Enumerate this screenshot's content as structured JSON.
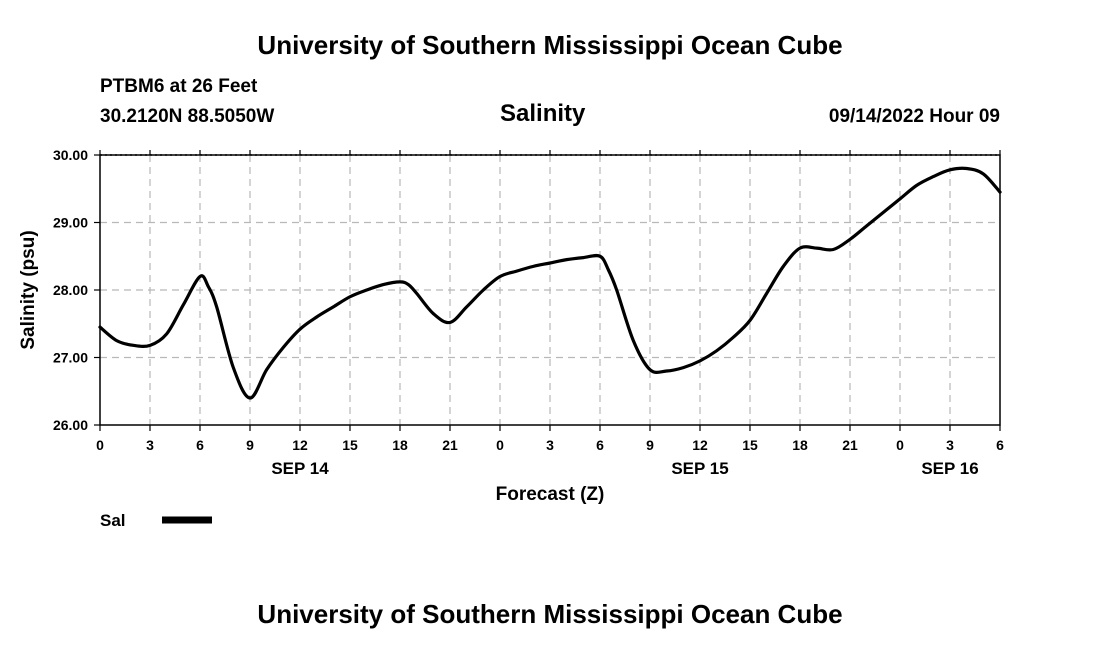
{
  "header": {
    "title": "University of Southern Mississippi Ocean Cube",
    "station": "PTBM6 at 26 Feet",
    "coordinates": "30.2120N  88.5050W",
    "plot_title": "Salinity",
    "forecast_time": "09/14/2022 Hour 09"
  },
  "footer": {
    "title": "University of Southern Mississippi Ocean Cube"
  },
  "chart_data": {
    "type": "line",
    "title": "Salinity",
    "xlabel": "Forecast (Z)",
    "ylabel": "Salinity (psu)",
    "ylim": [
      26.0,
      30.0
    ],
    "yticks": [
      "26.00",
      "27.00",
      "28.00",
      "29.00",
      "30.00"
    ],
    "xlim_hours": [
      0,
      54
    ],
    "xticks": [
      {
        "hour": 0,
        "label": "0"
      },
      {
        "hour": 3,
        "label": "3"
      },
      {
        "hour": 6,
        "label": "6"
      },
      {
        "hour": 9,
        "label": "9"
      },
      {
        "hour": 12,
        "label": "12"
      },
      {
        "hour": 15,
        "label": "15"
      },
      {
        "hour": 18,
        "label": "18"
      },
      {
        "hour": 21,
        "label": "21"
      },
      {
        "hour": 24,
        "label": "0"
      },
      {
        "hour": 27,
        "label": "3"
      },
      {
        "hour": 30,
        "label": "6"
      },
      {
        "hour": 33,
        "label": "9"
      },
      {
        "hour": 36,
        "label": "12"
      },
      {
        "hour": 39,
        "label": "15"
      },
      {
        "hour": 42,
        "label": "18"
      },
      {
        "hour": 45,
        "label": "21"
      },
      {
        "hour": 48,
        "label": "0"
      },
      {
        "hour": 51,
        "label": "3"
      },
      {
        "hour": 54,
        "label": "6"
      }
    ],
    "date_labels": [
      {
        "hour": 12,
        "label": "SEP 14"
      },
      {
        "hour": 36,
        "label": "SEP 15"
      },
      {
        "hour": 51,
        "label": "SEP 16"
      }
    ],
    "grid": true,
    "legend": [
      {
        "name": "Sal",
        "color": "#000000"
      }
    ],
    "series": [
      {
        "name": "Sal",
        "color": "#000000",
        "x": [
          0,
          1,
          2,
          3,
          4,
          5,
          6,
          6.5,
          7,
          8,
          9,
          10,
          11,
          12,
          13,
          14,
          15,
          16,
          17,
          18,
          18.5,
          19,
          20,
          21,
          22,
          23,
          24,
          25,
          26,
          27,
          28,
          29,
          30,
          30.5,
          31,
          32,
          33,
          34,
          35,
          36,
          37,
          38,
          39,
          40,
          41,
          42,
          43,
          44,
          45,
          46,
          47,
          48,
          49,
          50,
          51,
          52,
          53,
          54
        ],
        "y": [
          27.45,
          27.25,
          27.18,
          27.18,
          27.35,
          27.78,
          28.2,
          28.05,
          27.75,
          26.85,
          26.4,
          26.82,
          27.15,
          27.42,
          27.6,
          27.75,
          27.9,
          28.0,
          28.08,
          28.12,
          28.08,
          27.95,
          27.65,
          27.52,
          27.75,
          28.0,
          28.2,
          28.28,
          28.35,
          28.4,
          28.45,
          28.48,
          28.5,
          28.3,
          28.0,
          27.25,
          26.82,
          26.8,
          26.85,
          26.95,
          27.1,
          27.3,
          27.55,
          27.95,
          28.35,
          28.62,
          28.62,
          28.6,
          28.75,
          28.95,
          29.15,
          29.35,
          29.55,
          29.68,
          29.78,
          29.8,
          29.72,
          29.45
        ]
      }
    ]
  }
}
